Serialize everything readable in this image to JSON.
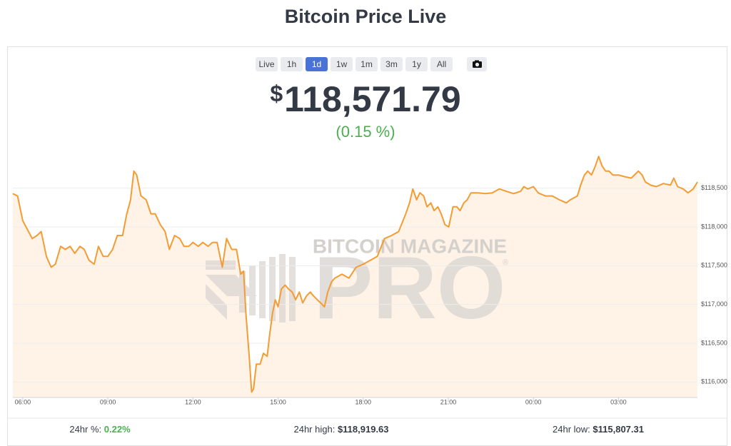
{
  "title": "Bitcoin Price Live",
  "range_buttons": [
    "Live",
    "1h",
    "1d",
    "1w",
    "1m",
    "3m",
    "1y",
    "All"
  ],
  "active_range": "1d",
  "price": {
    "currency": "$",
    "value": "118,571.79",
    "change": "(0.15 %)"
  },
  "watermark": {
    "top": "BITCOIN MAGAZINE",
    "main": "PRO",
    "mark": "®"
  },
  "chart_data": {
    "type": "line",
    "color": "#f39c34",
    "area_color": "#fff3e8",
    "x": [
      "05:39",
      "05:49",
      "06:00",
      "06:12",
      "06:20",
      "06:30",
      "06:39",
      "06:50",
      "07:00",
      "07:09",
      "07:20",
      "07:30",
      "07:40",
      "07:50",
      "08:01",
      "08:10",
      "08:20",
      "08:31",
      "08:40",
      "08:50",
      "09:00",
      "09:10",
      "09:20",
      "09:31",
      "09:40",
      "09:48",
      "09:55",
      "10:01",
      "10:10",
      "10:21",
      "10:31",
      "10:40",
      "10:51",
      "11:01",
      "11:10",
      "11:21",
      "11:32",
      "11:41",
      "11:51",
      "12:00",
      "12:11",
      "12:21",
      "12:32",
      "12:41",
      "12:51",
      "13:02",
      "13:11",
      "13:22",
      "13:32",
      "13:41",
      "13:47",
      "13:52",
      "13:59",
      "14:04",
      "14:08",
      "14:14",
      "14:22",
      "14:29",
      "14:37",
      "14:42",
      "14:48",
      "14:54",
      "15:00",
      "15:07",
      "15:15",
      "15:22",
      "15:30",
      "15:37",
      "15:45",
      "15:52",
      "16:00",
      "16:08",
      "16:15",
      "16:23",
      "16:30",
      "16:38",
      "16:45",
      "16:53",
      "17:00",
      "17:15",
      "17:30",
      "17:45",
      "18:00",
      "18:15",
      "18:30",
      "18:45",
      "19:00",
      "19:15",
      "19:30",
      "19:38",
      "19:45",
      "19:53",
      "20:00",
      "20:08",
      "20:15",
      "20:23",
      "20:30",
      "20:38",
      "20:45",
      "20:53",
      "21:01",
      "21:10",
      "21:18",
      "21:25",
      "21:33",
      "21:40",
      "21:48",
      "22:03",
      "22:18",
      "22:33",
      "22:48",
      "23:03",
      "23:18",
      "23:33",
      "23:40",
      "23:48",
      "00:00",
      "00:10",
      "00:25",
      "00:40",
      "00:55",
      "01:10",
      "01:18",
      "01:33",
      "01:40",
      "01:48",
      "01:55",
      "02:03",
      "02:10",
      "02:18",
      "02:25",
      "02:33",
      "02:40",
      "02:48",
      "03:00",
      "03:12",
      "03:27",
      "03:42",
      "03:50",
      "03:57",
      "04:08",
      "04:20",
      "04:35",
      "04:50",
      "04:57",
      "05:05",
      "05:17",
      "05:27",
      "05:38",
      "05:47"
    ],
    "values": [
      118430,
      118400,
      118080,
      117940,
      117850,
      117890,
      117940,
      117620,
      117480,
      117520,
      117750,
      117710,
      117750,
      117660,
      117750,
      117710,
      117570,
      117520,
      117750,
      117620,
      117620,
      117710,
      117890,
      117890,
      118170,
      118350,
      118720,
      118670,
      118400,
      118350,
      118170,
      118170,
      118030,
      117940,
      117710,
      117890,
      117850,
      117750,
      117750,
      117800,
      117750,
      117800,
      117750,
      117800,
      117800,
      117480,
      117850,
      117710,
      117710,
      117390,
      117430,
      116880,
      116330,
      115870,
      115910,
      116230,
      116230,
      116370,
      116330,
      116600,
      116880,
      117060,
      116970,
      117200,
      117250,
      117200,
      117160,
      117060,
      117160,
      117020,
      117110,
      117160,
      117110,
      117060,
      117020,
      116970,
      117160,
      117290,
      117340,
      117390,
      117340,
      117480,
      117520,
      117570,
      117620,
      117850,
      117890,
      117940,
      118170,
      118310,
      118490,
      118350,
      118440,
      118400,
      118260,
      118310,
      118210,
      118260,
      118170,
      118030,
      118000,
      118260,
      118260,
      118210,
      118310,
      118350,
      118440,
      118440,
      118430,
      118440,
      118490,
      118460,
      118430,
      118460,
      118520,
      118490,
      118520,
      118440,
      118400,
      118400,
      118350,
      118310,
      118350,
      118400,
      118540,
      118670,
      118720,
      118670,
      118770,
      118910,
      118790,
      118720,
      118720,
      118670,
      118670,
      118650,
      118630,
      118720,
      118670,
      118580,
      118540,
      118520,
      118560,
      118540,
      118630,
      118520,
      118490,
      118440,
      118490,
      118580
    ],
    "xlim": [
      "05:39",
      "05:47"
    ],
    "xticks": [
      "06:00",
      "09:00",
      "12:00",
      "15:00",
      "18:00",
      "21:00",
      "00:00",
      "03:00"
    ],
    "ylim": [
      115800,
      118930
    ],
    "yticks": [
      {
        "value": 116000,
        "label": "$116,000"
      },
      {
        "value": 116500,
        "label": "$116,500"
      },
      {
        "value": 117000,
        "label": "$117,000"
      },
      {
        "value": 117500,
        "label": "$117,500"
      },
      {
        "value": 118000,
        "label": "$118,000"
      },
      {
        "value": 118500,
        "label": "$118,500"
      }
    ],
    "grid": true
  },
  "stats": [
    {
      "label": "24hr %:",
      "value": "0.22%",
      "color": "#4caf50"
    },
    {
      "label": "24hr high:",
      "value": "$118,919.63",
      "color": "#333a45"
    },
    {
      "label": "24hr low:",
      "value": "$115,807.31",
      "color": "#333a45"
    }
  ]
}
